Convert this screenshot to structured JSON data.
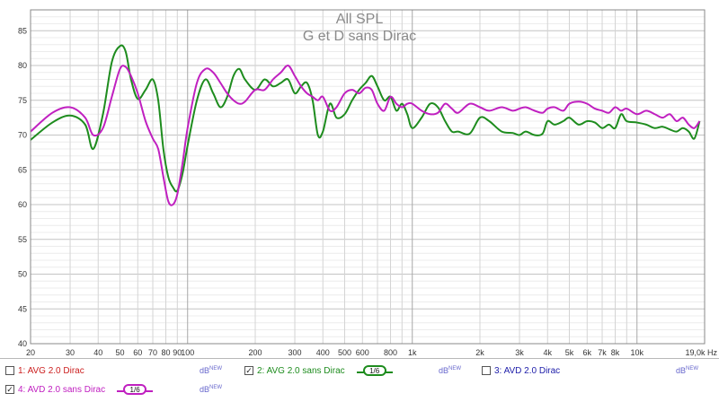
{
  "chart_data": {
    "type": "line",
    "title": "All SPL",
    "subtitle": "G et D sans Dirac",
    "xscale": "log",
    "xlim": [
      20,
      20000
    ],
    "ylim": [
      40,
      88
    ],
    "grid": true,
    "y_ticks": [
      40,
      45,
      50,
      55,
      60,
      65,
      70,
      75,
      80,
      85
    ],
    "y_tick_labels": [
      "40",
      "45",
      "50",
      "55",
      "60",
      "65",
      "70",
      "75",
      "80",
      "85"
    ],
    "x_ticks": [
      20,
      30,
      40,
      50,
      60,
      70,
      80,
      90,
      100,
      200,
      300,
      400,
      500,
      600,
      800,
      1000,
      2000,
      3000,
      4000,
      5000,
      6000,
      7000,
      8000,
      10000,
      19000
    ],
    "x_tick_labels": [
      "20",
      "30",
      "40",
      "50",
      "60",
      "70",
      "80",
      "90",
      "100",
      "200",
      "300",
      "400",
      "500",
      "600",
      "800",
      "1k",
      "2k",
      "3k",
      "4k",
      "5k",
      "6k",
      "7k",
      "8k",
      "10k",
      "19,0k Hz"
    ],
    "series": [
      {
        "name": "AVG 2.0 sans Dirac",
        "color": "#1e8c1e",
        "x": [
          20,
          25,
          30,
          35,
          38,
          42,
          46,
          50,
          53,
          56,
          60,
          65,
          70,
          74,
          78,
          82,
          86,
          90,
          95,
          100,
          110,
          120,
          130,
          140,
          150,
          160,
          170,
          180,
          200,
          220,
          240,
          260,
          280,
          300,
          320,
          340,
          360,
          380,
          400,
          430,
          460,
          500,
          540,
          580,
          620,
          660,
          700,
          750,
          800,
          850,
          900,
          950,
          1000,
          1100,
          1200,
          1300,
          1400,
          1500,
          1600,
          1800,
          2000,
          2200,
          2500,
          2800,
          3000,
          3200,
          3500,
          3800,
          4000,
          4300,
          4700,
          5000,
          5500,
          6000,
          6500,
          7000,
          7500,
          8000,
          8500,
          9000,
          10000,
          11000,
          12000,
          13000,
          14000,
          15000,
          16000,
          17000,
          18000,
          19000
        ],
        "values": [
          69.3,
          71.8,
          72.8,
          71.5,
          68.0,
          73.0,
          80.5,
          82.8,
          82.0,
          78.0,
          75.2,
          76.5,
          78.0,
          75.0,
          68.0,
          64.0,
          62.5,
          62.0,
          64.5,
          68.5,
          75.0,
          78.0,
          76.0,
          74.0,
          75.5,
          78.5,
          79.5,
          78.0,
          76.5,
          78.0,
          77.0,
          77.5,
          78.0,
          76.0,
          77.0,
          77.5,
          75.0,
          70.0,
          70.5,
          74.5,
          72.5,
          73.0,
          75.0,
          76.5,
          77.5,
          78.5,
          77.0,
          75.0,
          75.5,
          73.5,
          74.5,
          73.0,
          71.0,
          72.5,
          74.5,
          74.0,
          72.0,
          70.5,
          70.5,
          70.2,
          72.5,
          72.0,
          70.5,
          70.3,
          70.0,
          70.5,
          70.0,
          70.2,
          72.0,
          71.5,
          72.0,
          72.5,
          71.5,
          72.0,
          71.8,
          71.0,
          71.5,
          71.0,
          73.0,
          72.0,
          71.8,
          71.5,
          71.0,
          71.2,
          70.8,
          70.5,
          71.0,
          70.5,
          69.5,
          72.0
        ]
      },
      {
        "name": "AVD 2.0 sans Dirac",
        "color": "#c020c0",
        "x": [
          20,
          25,
          30,
          35,
          38,
          42,
          46,
          50,
          53,
          56,
          60,
          65,
          70,
          74,
          78,
          82,
          86,
          90,
          95,
          100,
          110,
          120,
          130,
          140,
          150,
          160,
          170,
          180,
          200,
          220,
          240,
          260,
          280,
          300,
          320,
          340,
          360,
          380,
          400,
          430,
          460,
          500,
          540,
          580,
          620,
          660,
          700,
          750,
          800,
          850,
          900,
          950,
          1000,
          1100,
          1200,
          1300,
          1400,
          1500,
          1600,
          1800,
          2000,
          2200,
          2500,
          2800,
          3000,
          3200,
          3500,
          3800,
          4000,
          4300,
          4700,
          5000,
          5500,
          6000,
          6500,
          7000,
          7500,
          8000,
          8500,
          9000,
          10000,
          11000,
          12000,
          13000,
          14000,
          15000,
          16000,
          17000,
          18000,
          19000
        ],
        "values": [
          70.5,
          73.2,
          74.0,
          72.5,
          70.0,
          71.0,
          75.5,
          79.5,
          79.8,
          78.5,
          76.0,
          72.0,
          69.5,
          68.0,
          64.0,
          60.5,
          60.0,
          61.5,
          66.0,
          71.0,
          77.5,
          79.5,
          79.0,
          77.5,
          76.0,
          75.0,
          74.5,
          74.8,
          76.5,
          76.5,
          78.0,
          79.0,
          80.0,
          78.5,
          77.0,
          76.0,
          75.5,
          75.0,
          75.5,
          73.5,
          74.0,
          76.0,
          76.5,
          76.0,
          76.8,
          76.5,
          74.5,
          73.5,
          75.5,
          74.5,
          74.0,
          74.5,
          74.5,
          73.5,
          73.0,
          73.2,
          74.5,
          73.8,
          73.2,
          74.5,
          74.0,
          73.5,
          74.0,
          73.5,
          73.8,
          74.0,
          73.5,
          73.2,
          73.8,
          74.0,
          73.5,
          74.5,
          74.8,
          74.5,
          73.8,
          73.5,
          73.2,
          74.0,
          73.5,
          73.8,
          73.0,
          73.5,
          73.0,
          72.5,
          73.0,
          72.0,
          72.5,
          71.5,
          71.0,
          72.0
        ]
      }
    ]
  },
  "legend": {
    "items": [
      {
        "label": "1: AVG 2.0 Dirac",
        "color": "#cc2020",
        "checked": false,
        "unit": "dB",
        "unit_sup": "NEW"
      },
      {
        "label": "2: AVG 2.0 sans Dirac",
        "color": "#1e8c1e",
        "checked": true,
        "smoothing": "1/6",
        "unit": "dB",
        "unit_sup": "NEW"
      },
      {
        "label": "3: AVD 2.0 Dirac",
        "color": "#2020aa",
        "checked": false,
        "unit": "dB",
        "unit_sup": "NEW"
      },
      {
        "label": "4: AVD 2.0 sans Dirac",
        "color": "#c020c0",
        "checked": true,
        "smoothing": "1/6",
        "unit": "dB",
        "unit_sup": "NEW"
      }
    ],
    "check_mark": "✓"
  }
}
